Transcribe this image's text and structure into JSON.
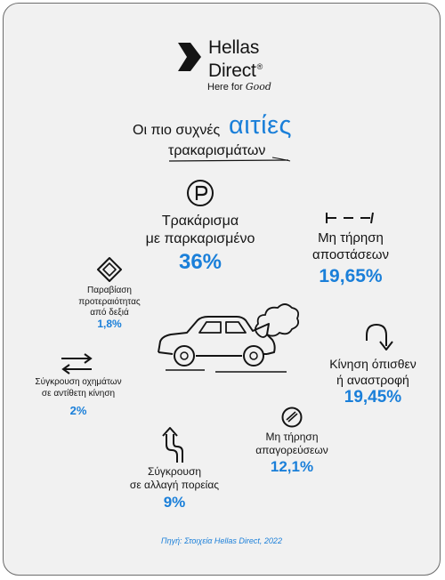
{
  "brand": {
    "name_line1": "Hellas",
    "name_line2": "Direct",
    "registered_mark": "®",
    "tagline_prefix": "Here for",
    "tagline_script": "Good"
  },
  "heading": {
    "prefix": "Οι πιο συχνές",
    "highlight": "αιτίες",
    "line2": "τρακαρισμάτων"
  },
  "causes": {
    "parked": {
      "label_line1": "Τρακάρισμα",
      "label_line2": "με παρκαρισμένο",
      "value": "36%",
      "icon": "parking-icon"
    },
    "distance": {
      "label_line1": "Μη τήρηση",
      "label_line2": "αποστάσεων",
      "value": "19,65%",
      "icon": "distance-dashes-icon"
    },
    "reverse": {
      "label_line1": "Κίνηση όπισθεν",
      "label_line2": "ή αναστροφή",
      "value": "19,45%",
      "icon": "u-turn-arrow-icon"
    },
    "prohibitions": {
      "label_line1": "Μη τήρηση",
      "label_line2": "απαγορεύσεων",
      "value": "12,1%",
      "icon": "no-entry-icon"
    },
    "lane_change": {
      "label_line1": "Σύγκρουση",
      "label_line2": "σε αλλαγή πορείας",
      "value": "9%",
      "icon": "winding-arrow-icon"
    },
    "opposite": {
      "label_line1": "Σύγκρουση οχημάτων",
      "label_line2": "σε αντίθετη κίνηση",
      "value": "2%",
      "icon": "opposite-arrows-icon"
    },
    "priority": {
      "label_line1": "Παραβίαση",
      "label_line2": "προτεραιότητας",
      "label_line3": "από δεξιά",
      "value": "1,8%",
      "icon": "diamond-sign-icon"
    }
  },
  "source": "Πηγή: Στοιχεία Hellas Direct, 2022",
  "colors": {
    "accent": "#1a7fd9",
    "card": "#f1f1f1",
    "ink": "#141414"
  }
}
